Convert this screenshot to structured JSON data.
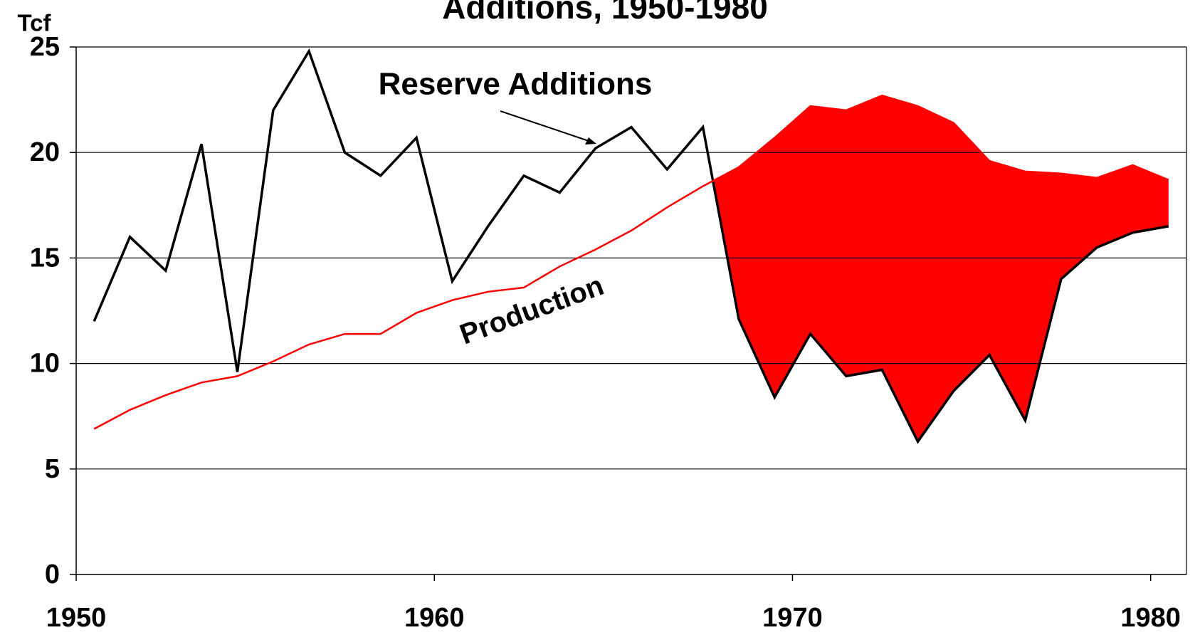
{
  "chart_data": {
    "type": "line",
    "title": "Additions, 1950-1980",
    "y_label": "Tcf",
    "x": [
      1950.5,
      1951.5,
      1952.5,
      1953.5,
      1954.5,
      1955.5,
      1956.5,
      1957.5,
      1958.5,
      1959.5,
      1960.5,
      1961.5,
      1962.5,
      1963.5,
      1964.5,
      1965.5,
      1966.5,
      1967.5,
      1968.5,
      1969.5,
      1970.5,
      1971.5,
      1972.5,
      1973.5,
      1974.5,
      1975.5,
      1976.5,
      1977.5,
      1978.5,
      1979.5,
      1980.5
    ],
    "series": [
      {
        "name": "Reserve Additions",
        "color": "#000000",
        "values": [
          12.0,
          16.0,
          14.4,
          20.4,
          9.6,
          22.0,
          24.8,
          20.0,
          18.9,
          20.7,
          13.9,
          16.5,
          18.9,
          18.1,
          20.2,
          21.2,
          19.2,
          21.2,
          12.1,
          8.4,
          11.4,
          9.4,
          9.7,
          6.3,
          8.7,
          10.4,
          7.3,
          14.0,
          15.5,
          16.2,
          16.5
        ]
      },
      {
        "name": "Production",
        "color": "#ff0000",
        "values": [
          6.9,
          7.8,
          8.5,
          9.1,
          9.4,
          10.1,
          10.9,
          11.4,
          11.4,
          12.4,
          13.0,
          13.4,
          13.6,
          14.6,
          15.4,
          16.3,
          17.4,
          18.4,
          19.3,
          20.7,
          22.2,
          22.0,
          22.7,
          22.2,
          21.4,
          19.6,
          19.1,
          19.0,
          18.8,
          19.4,
          18.7
        ]
      }
    ],
    "fill_color": "#ff0000",
    "xlim": [
      1950,
      1981
    ],
    "xticks": [
      1950,
      1960,
      1970,
      1980
    ],
    "ylim": [
      0,
      25
    ],
    "yticks": [
      0,
      5,
      10,
      15,
      20,
      25
    ],
    "grid": true
  }
}
